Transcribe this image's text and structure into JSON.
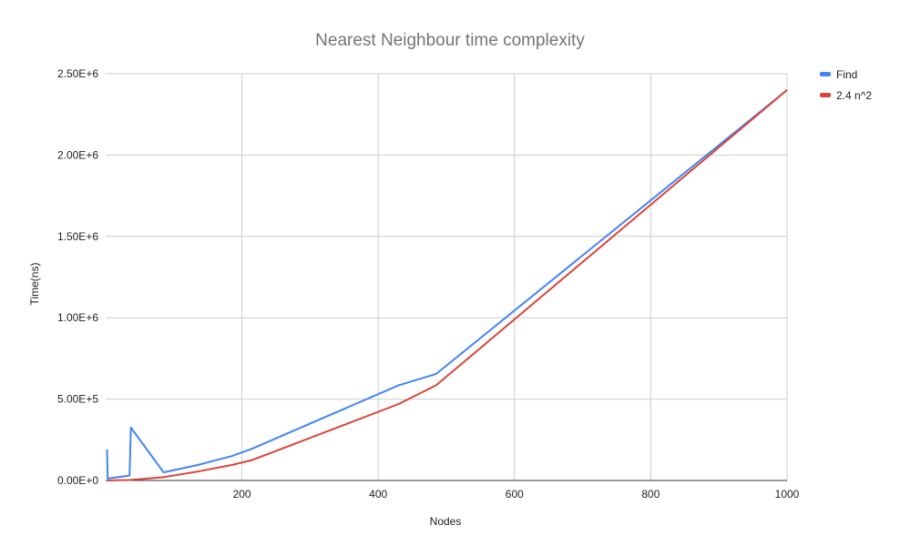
{
  "chart_data": {
    "type": "line",
    "title": "Nearest Neighbour time complexity",
    "xlabel": "Nodes",
    "ylabel": "Time(ns)",
    "xlim": [
      0,
      1000
    ],
    "ylim": [
      0,
      2500000
    ],
    "x_ticks": [
      200,
      400,
      600,
      800,
      1000
    ],
    "x_tick_labels": [
      "200",
      "400",
      "600",
      "800",
      "1000"
    ],
    "y_ticks": [
      0,
      500000,
      1000000,
      1500000,
      2000000,
      2500000
    ],
    "y_tick_labels": [
      "0.00E+0",
      "5.00E+5",
      "1.00E+6",
      "1.50E+6",
      "2.00E+6",
      "2.50E+6"
    ],
    "grid": true,
    "legend_position": "right",
    "series": [
      {
        "name": "Find",
        "color": "#4285f4",
        "points": [
          [
            2,
            190000
          ],
          [
            3,
            12000
          ],
          [
            35,
            30000
          ],
          [
            37,
            325000
          ],
          [
            85,
            50000
          ],
          [
            135,
            95000
          ],
          [
            185,
            150000
          ],
          [
            215,
            195000
          ],
          [
            430,
            585000
          ],
          [
            485,
            655000
          ],
          [
            1000,
            2400000
          ]
        ]
      },
      {
        "name": "2.4 n^2",
        "color": "#db4437",
        "points": [
          [
            2,
            0
          ],
          [
            35,
            3000
          ],
          [
            85,
            20000
          ],
          [
            135,
            55000
          ],
          [
            185,
            95000
          ],
          [
            215,
            125000
          ],
          [
            430,
            470000
          ],
          [
            485,
            585000
          ],
          [
            1000,
            2400000
          ]
        ]
      }
    ]
  }
}
